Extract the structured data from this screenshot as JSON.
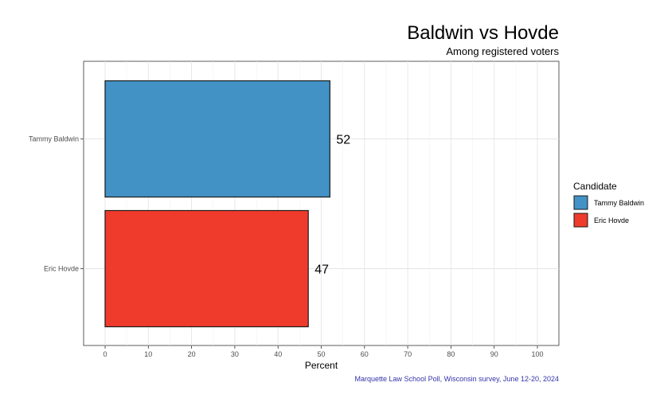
{
  "chart_data": {
    "type": "bar",
    "orientation": "horizontal",
    "title": "Baldwin vs Hovde",
    "subtitle": "Among registered voters",
    "xlabel": "Percent",
    "ylabel": "",
    "xlim": [
      0,
      100
    ],
    "x_ticks": [
      0,
      10,
      20,
      30,
      40,
      50,
      60,
      70,
      80,
      90,
      100
    ],
    "categories": [
      "Tammy Baldwin",
      "Eric Hovde"
    ],
    "values": [
      52,
      47
    ],
    "colors": [
      "#4292c6",
      "#ef3b2c"
    ],
    "legend": {
      "title": "Candidate",
      "placement": "right",
      "entries": [
        "Tammy Baldwin",
        "Eric Hovde"
      ]
    },
    "grid": true,
    "caption": "Marquette Law School Poll, Wisconsin survey, June 12-20, 2024"
  }
}
